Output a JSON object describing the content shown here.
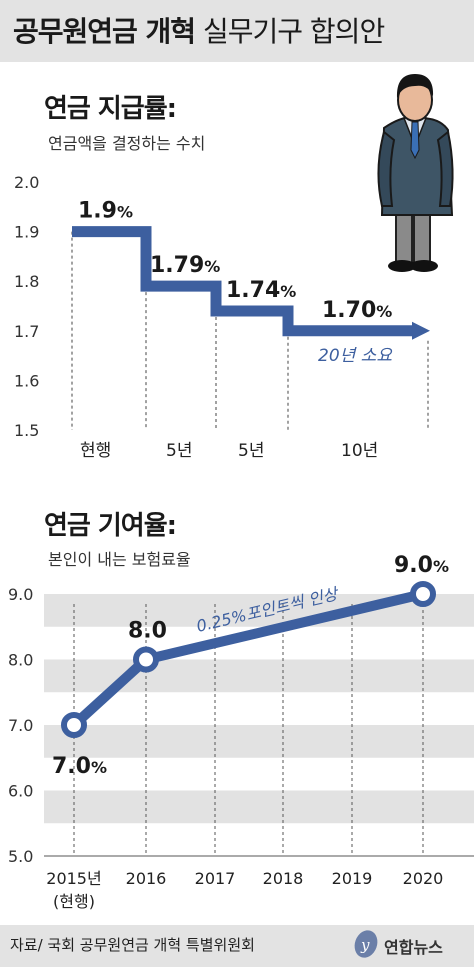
{
  "header": {
    "title_bold": "공무원연금 개혁",
    "title_light": "실무기구 합의안"
  },
  "colors": {
    "line": "#3d5f9f",
    "band": "#e2e2e2",
    "header_bg": "#e3e3e3"
  },
  "section1": {
    "title": "연금 지급률:",
    "subtitle": "연금액을 결정하는 수치",
    "annotation": "20년 소요"
  },
  "section2": {
    "title": "연금 기여율:",
    "subtitle": "본인이 내는 보험료율",
    "annotation": "0.25%포인트씩 인상"
  },
  "chart_data": [
    {
      "type": "line",
      "title": "연금 지급률:",
      "subtitle": "연금액을 결정하는 수치",
      "step": true,
      "ylim": [
        1.5,
        2.0
      ],
      "yticks": [
        "2.0",
        "1.9",
        "1.8",
        "1.7",
        "1.6",
        "1.5"
      ],
      "periods": [
        "현행",
        "5년",
        "5년",
        "10년"
      ],
      "values": [
        1.9,
        1.79,
        1.74,
        1.7
      ],
      "value_labels": [
        "1.9%",
        "1.79%",
        "1.74%",
        "1.70%"
      ],
      "annotation": "20년 소요",
      "grid": false
    },
    {
      "type": "line",
      "title": "연금 기여율:",
      "subtitle": "본인이 내는 보험료율",
      "ylim": [
        5.0,
        9.0
      ],
      "yticks": [
        "9.0",
        "8.0",
        "7.0",
        "6.0",
        "5.0"
      ],
      "x": [
        "2015년",
        "2016",
        "2017",
        "2018",
        "2019",
        "2020"
      ],
      "x_sub": [
        "(현행)",
        "",
        "",
        "",
        "",
        ""
      ],
      "series": [
        {
          "x": [
            "2015년",
            "2016",
            "2020"
          ],
          "values": [
            7.0,
            8.0,
            9.0
          ]
        }
      ],
      "value_labels": [
        "7.0%",
        "8.0",
        "9.0%"
      ],
      "annotation": "0.25%포인트씩 인상",
      "grid": true
    }
  ],
  "footer": {
    "source": "자료/ 국회 공무원연금 개혁 특별위원회",
    "logo": "연합뉴스"
  }
}
